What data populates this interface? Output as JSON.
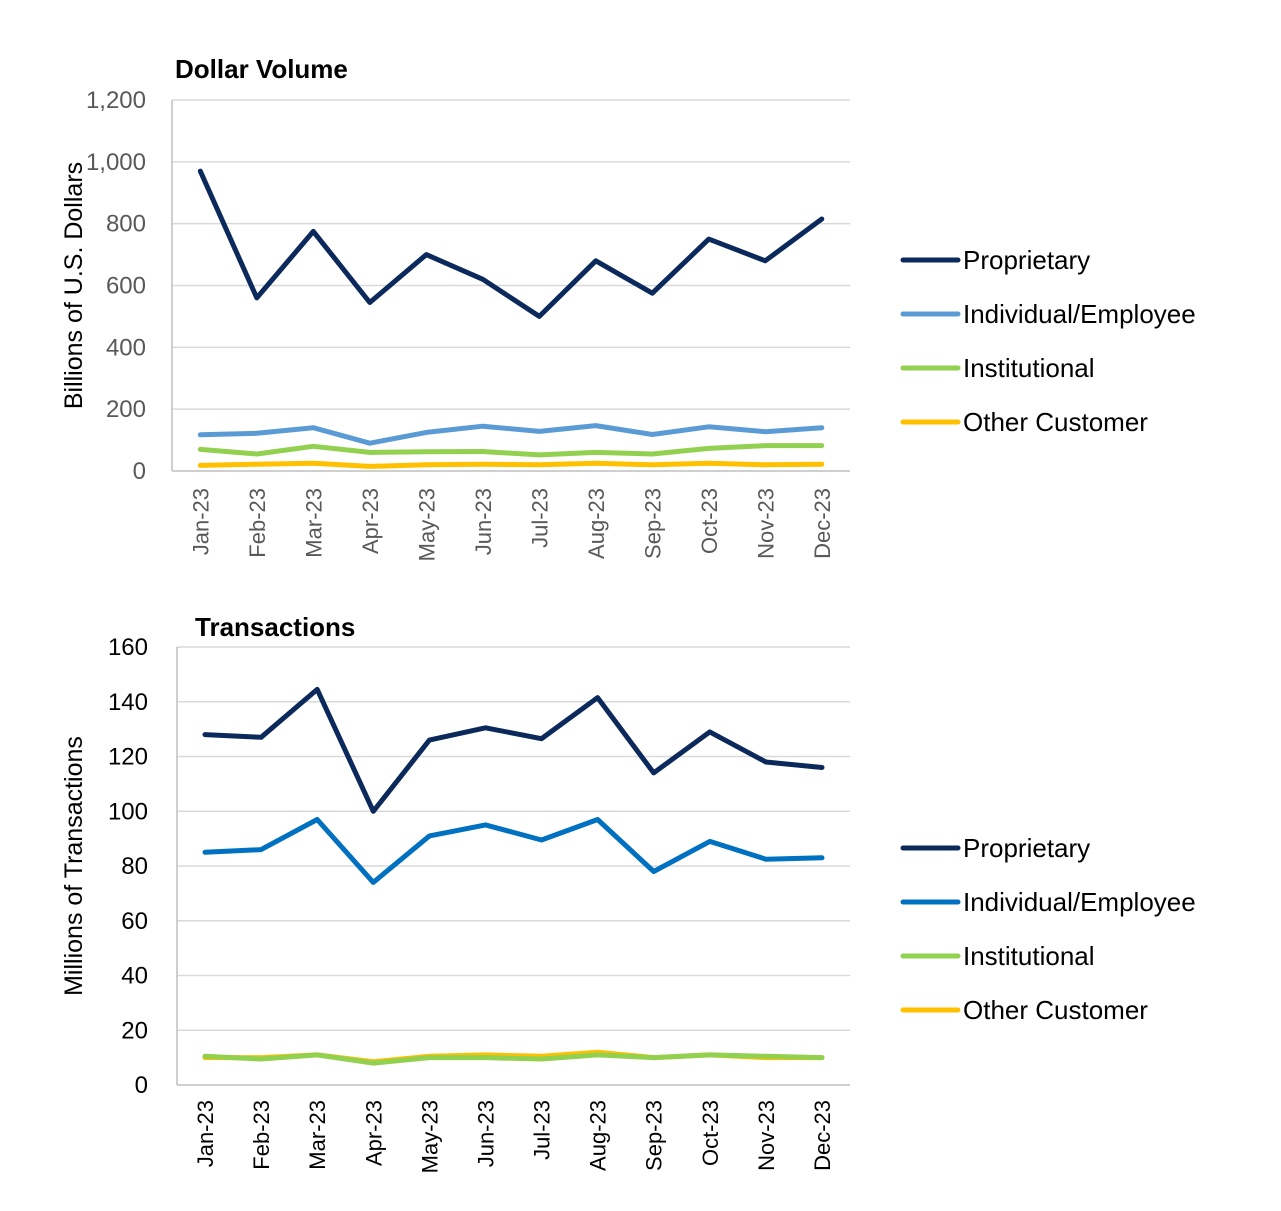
{
  "chart_data": [
    {
      "type": "line",
      "title": "Dollar Volume",
      "xlabel": "",
      "ylabel": "Billions of U.S. Dollars",
      "ylim": [
        0,
        1200
      ],
      "yticks": [
        "0",
        "200",
        "400",
        "600",
        "800",
        "1,000",
        "1,200"
      ],
      "ytick_values": [
        0,
        200,
        400,
        600,
        800,
        1000,
        1200
      ],
      "categories": [
        "Jan-23",
        "Feb-23",
        "Mar-23",
        "Apr-23",
        "May-23",
        "Jun-23",
        "Jul-23",
        "Aug-23",
        "Sep-23",
        "Oct-23",
        "Nov-23",
        "Dec-23"
      ],
      "legend_position": "right",
      "grid": true,
      "series": [
        {
          "name": "Proprietary",
          "color": "#0b2a5b",
          "values": [
            970,
            560,
            775,
            545,
            700,
            620,
            500,
            680,
            575,
            750,
            680,
            815
          ]
        },
        {
          "name": "Individual/Employee",
          "color": "#5b9bd5",
          "values": [
            117,
            122,
            140,
            90,
            125,
            145,
            128,
            147,
            118,
            143,
            127,
            140
          ]
        },
        {
          "name": "Institutional",
          "color": "#92d050",
          "values": [
            70,
            55,
            80,
            60,
            62,
            63,
            52,
            60,
            55,
            73,
            82,
            82
          ]
        },
        {
          "name": "Other Customer",
          "color": "#ffc000",
          "values": [
            18,
            22,
            25,
            15,
            20,
            22,
            20,
            25,
            20,
            25,
            20,
            22
          ]
        }
      ]
    },
    {
      "type": "line",
      "title": "Transactions",
      "xlabel": "",
      "ylabel": "Millions of Transactions",
      "ylim": [
        0,
        160
      ],
      "yticks": [
        "0",
        "20",
        "40",
        "60",
        "80",
        "100",
        "120",
        "140",
        "160"
      ],
      "ytick_values": [
        0,
        20,
        40,
        60,
        80,
        100,
        120,
        140,
        160
      ],
      "categories": [
        "Jan-23",
        "Feb-23",
        "Mar-23",
        "Apr-23",
        "May-23",
        "Jun-23",
        "Jul-23",
        "Aug-23",
        "Sep-23",
        "Oct-23",
        "Nov-23",
        "Dec-23"
      ],
      "legend_position": "right",
      "grid": true,
      "series": [
        {
          "name": "Proprietary",
          "color": "#0b2a5b",
          "values": [
            128,
            127,
            144.5,
            100,
            126,
            130.5,
            126.5,
            141.5,
            114,
            129,
            118,
            116
          ]
        },
        {
          "name": "Individual/Employee",
          "color": "#0070c0",
          "values": [
            85,
            86,
            97,
            74,
            91,
            95,
            89.5,
            97,
            78,
            89,
            82.5,
            83
          ]
        },
        {
          "name": "Institutional",
          "color": "#92d050",
          "values": [
            10.5,
            9.5,
            11,
            8,
            10,
            10,
            9.5,
            11,
            10,
            11,
            10.5,
            10
          ]
        },
        {
          "name": "Other Customer",
          "color": "#ffc000",
          "values": [
            10,
            10,
            11,
            8.5,
            10.5,
            11,
            10.5,
            12,
            10,
            11,
            10,
            10
          ]
        }
      ]
    }
  ]
}
